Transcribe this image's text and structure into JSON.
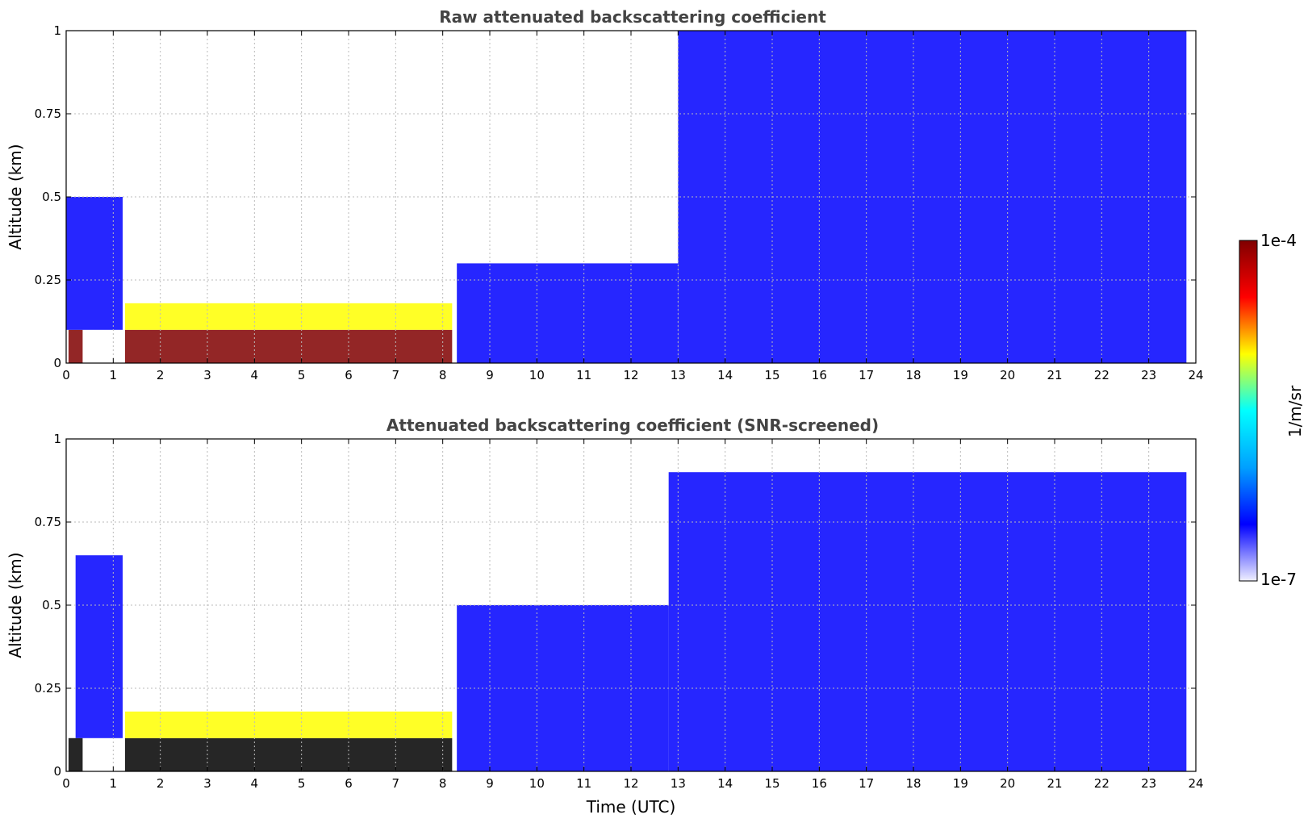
{
  "chart_data": [
    {
      "type": "heatmap",
      "title": "Raw attenuated backscattering coefficient",
      "xlabel": "",
      "ylabel": "Altitude (km)",
      "xlim": [
        0,
        24
      ],
      "ylim": [
        0,
        1
      ],
      "x_ticks": [
        "0",
        "1",
        "2",
        "3",
        "4",
        "5",
        "6",
        "7",
        "8",
        "9",
        "10",
        "11",
        "12",
        "13",
        "14",
        "15",
        "16",
        "17",
        "18",
        "19",
        "20",
        "21",
        "22",
        "23",
        "24"
      ],
      "y_ticks": [
        "0",
        "0.25",
        "0.5",
        "0.75",
        "1"
      ],
      "grid": true,
      "colormap": "jet",
      "screened": false,
      "regions": [
        {
          "x": [
            0.05,
            0.35
          ],
          "y": [
            0,
            0.1
          ],
          "level": 1.0
        },
        {
          "x": [
            0.0,
            1.2
          ],
          "y": [
            0.1,
            0.5
          ],
          "level": 0.15
        },
        {
          "x": [
            1.25,
            8.2
          ],
          "y": [
            0,
            0.1
          ],
          "level": 1.0
        },
        {
          "x": [
            1.25,
            8.2
          ],
          "y": [
            0.1,
            0.18
          ],
          "level": 0.6
        },
        {
          "x": [
            8.3,
            13.0
          ],
          "y": [
            0,
            0.3
          ],
          "level": 0.2
        },
        {
          "x": [
            13.0,
            23.8
          ],
          "y": [
            0,
            1.0
          ],
          "level": 0.25
        }
      ]
    },
    {
      "type": "heatmap",
      "title": "Attenuated backscattering coefficient (SNR-screened)",
      "xlabel": "Time (UTC)",
      "ylabel": "Altitude (km)",
      "xlim": [
        0,
        24
      ],
      "ylim": [
        0,
        1
      ],
      "x_ticks": [
        "0",
        "1",
        "2",
        "3",
        "4",
        "5",
        "6",
        "7",
        "8",
        "9",
        "10",
        "11",
        "12",
        "13",
        "14",
        "15",
        "16",
        "17",
        "18",
        "19",
        "20",
        "21",
        "22",
        "23",
        "24"
      ],
      "y_ticks": [
        "0",
        "0.25",
        "0.5",
        "0.75",
        "1"
      ],
      "grid": true,
      "colormap": "jet",
      "screened": true,
      "regions": [
        {
          "x": [
            0.05,
            0.35
          ],
          "y": [
            0,
            0.1
          ],
          "level": 1.0
        },
        {
          "x": [
            0.2,
            1.2
          ],
          "y": [
            0.1,
            0.65
          ],
          "level": 0.15
        },
        {
          "x": [
            1.25,
            8.2
          ],
          "y": [
            0,
            0.1
          ],
          "level": 1.0
        },
        {
          "x": [
            1.25,
            8.2
          ],
          "y": [
            0.1,
            0.18
          ],
          "level": 0.6
        },
        {
          "x": [
            8.3,
            12.8
          ],
          "y": [
            0,
            0.5
          ],
          "level": 0.18
        },
        {
          "x": [
            12.8,
            23.8
          ],
          "y": [
            0,
            0.9
          ],
          "level": 0.25
        }
      ]
    }
  ],
  "colorbar": {
    "label": "1/m/sr",
    "max_label": "1e-4",
    "min_label": "1e-7",
    "scale": "log",
    "colors": [
      "#f0f0ff",
      "#0000ff",
      "#00a0ff",
      "#00ffff",
      "#ffff00",
      "#ff0000",
      "#800000"
    ]
  }
}
